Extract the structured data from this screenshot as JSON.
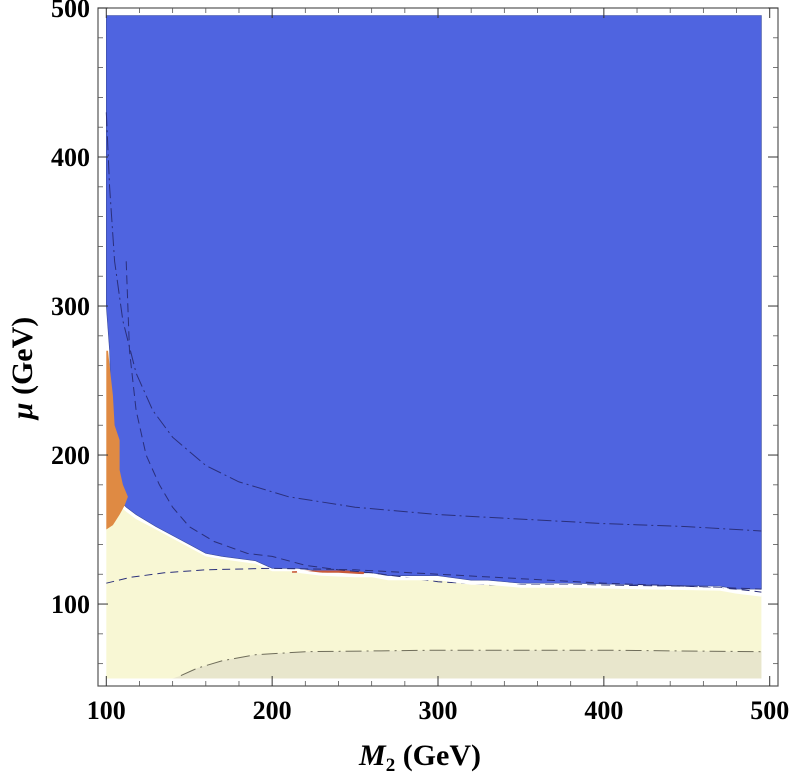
{
  "chart_data": {
    "type": "contour",
    "xlabel": "M2 (GeV)",
    "ylabel": "μ (GeV)",
    "xlabel_parts": {
      "main": "M",
      "sub": "2",
      "unit": " (GeV)"
    },
    "ylabel_parts": {
      "main": "μ",
      "unit": " (GeV)"
    },
    "xlim": [
      95,
      505
    ],
    "ylim": [
      45,
      500
    ],
    "xticks": [
      100,
      200,
      300,
      400,
      500
    ],
    "yticks": [
      100,
      200,
      300,
      400,
      500
    ],
    "xtick_labels": [
      "100",
      "200",
      "300",
      "400",
      "500"
    ],
    "ytick_labels": [
      "100",
      "200",
      "300",
      "400",
      "500"
    ],
    "colors": {
      "blue_region": "#4f64e0",
      "yellow_region": "#f8f7d4",
      "gray_region": "#e8e6cc",
      "orange_region": "#df8a43",
      "red_region": "#c85a3a",
      "contour_line": "#2a2f7a",
      "frame": "#555555"
    },
    "regions": [
      {
        "name": "blue-region",
        "points": [
          [
            100,
            495
          ],
          [
            495,
            495
          ],
          [
            495,
            110
          ],
          [
            480,
            110
          ],
          [
            470,
            112
          ],
          [
            420,
            113
          ],
          [
            380,
            114
          ],
          [
            350,
            114
          ],
          [
            330,
            116
          ],
          [
            320,
            116
          ],
          [
            300,
            119
          ],
          [
            270,
            119
          ],
          [
            260,
            121
          ],
          [
            250,
            121
          ],
          [
            230,
            122
          ],
          [
            215,
            124
          ],
          [
            200,
            124
          ],
          [
            190,
            129
          ],
          [
            170,
            132
          ],
          [
            160,
            134
          ],
          [
            150,
            140
          ],
          [
            140,
            146
          ],
          [
            130,
            152
          ],
          [
            118,
            160
          ],
          [
            112,
            165
          ],
          [
            108,
            170
          ],
          [
            106,
            180
          ],
          [
            104,
            200
          ],
          [
            103,
            230
          ],
          [
            102,
            270
          ],
          [
            100,
            300
          ]
        ]
      },
      {
        "name": "yellow-region",
        "points": [
          [
            100,
            50
          ],
          [
            495,
            50
          ],
          [
            495,
            106
          ],
          [
            480,
            108
          ],
          [
            470,
            110
          ],
          [
            420,
            111
          ],
          [
            380,
            112
          ],
          [
            350,
            112
          ],
          [
            330,
            114
          ],
          [
            320,
            114
          ],
          [
            300,
            117
          ],
          [
            270,
            117
          ],
          [
            260,
            119
          ],
          [
            250,
            119
          ],
          [
            230,
            120
          ],
          [
            215,
            122
          ],
          [
            200,
            122
          ],
          [
            190,
            127
          ],
          [
            170,
            130
          ],
          [
            160,
            132
          ],
          [
            150,
            138
          ],
          [
            140,
            144
          ],
          [
            130,
            150
          ],
          [
            118,
            157
          ],
          [
            112,
            162
          ],
          [
            108,
            166
          ],
          [
            104,
            155
          ],
          [
            100,
            150
          ]
        ]
      },
      {
        "name": "gray-region",
        "points": [
          [
            140,
            50
          ],
          [
            495,
            50
          ],
          [
            495,
            68
          ],
          [
            400,
            69
          ],
          [
            300,
            69
          ],
          [
            220,
            68
          ],
          [
            190,
            66
          ],
          [
            170,
            62
          ],
          [
            155,
            57
          ],
          [
            145,
            52
          ]
        ]
      },
      {
        "name": "orange-region",
        "points": [
          [
            100,
            150
          ],
          [
            104,
            153
          ],
          [
            108,
            160
          ],
          [
            111,
            166
          ],
          [
            113,
            172
          ],
          [
            110,
            180
          ],
          [
            108,
            190
          ],
          [
            108,
            210
          ],
          [
            105,
            220
          ],
          [
            104,
            240
          ],
          [
            102,
            260
          ],
          [
            101,
            270
          ],
          [
            100,
            270
          ]
        ]
      },
      {
        "name": "red-region",
        "points": [
          [
            212,
            121
          ],
          [
            240,
            121
          ],
          [
            255,
            120
          ],
          [
            256,
            121.5
          ],
          [
            245,
            122.5
          ],
          [
            225,
            122.5
          ],
          [
            212,
            122
          ]
        ]
      }
    ],
    "contours": [
      {
        "name": "contour-upper-dashed",
        "dash": "14 4 2 4",
        "points": [
          [
            100,
            430
          ],
          [
            102,
            380
          ],
          [
            105,
            330
          ],
          [
            110,
            290
          ],
          [
            118,
            255
          ],
          [
            128,
            230
          ],
          [
            140,
            212
          ],
          [
            160,
            193
          ],
          [
            180,
            182
          ],
          [
            210,
            172
          ],
          [
            250,
            165
          ],
          [
            300,
            160
          ],
          [
            350,
            157
          ],
          [
            400,
            154
          ],
          [
            450,
            152
          ],
          [
            495,
            149
          ]
        ]
      },
      {
        "name": "contour-middle-dashed",
        "dash": "9 5",
        "points": [
          [
            112,
            330
          ],
          [
            114,
            270
          ],
          [
            118,
            230
          ],
          [
            124,
            200
          ],
          [
            132,
            180
          ],
          [
            140,
            165
          ],
          [
            150,
            152
          ],
          [
            165,
            142
          ],
          [
            185,
            134
          ],
          [
            200,
            132
          ],
          [
            220,
            126
          ],
          [
            240,
            123
          ],
          [
            260,
            121
          ],
          [
            300,
            115
          ],
          [
            330,
            113
          ],
          [
            380,
            113
          ],
          [
            450,
            112
          ],
          [
            495,
            110
          ]
        ]
      },
      {
        "name": "contour-lower-dashed",
        "dash": "8 5",
        "points": [
          [
            100,
            114
          ],
          [
            115,
            118
          ],
          [
            135,
            121
          ],
          [
            160,
            123
          ],
          [
            200,
            124
          ],
          [
            250,
            123
          ],
          [
            300,
            120
          ],
          [
            350,
            117
          ],
          [
            400,
            114
          ],
          [
            450,
            112
          ],
          [
            480,
            110
          ],
          [
            495,
            108
          ]
        ]
      },
      {
        "name": "contour-gray-boundary",
        "dash": "16 5 2 5",
        "points": [
          [
            145,
            52
          ],
          [
            155,
            57
          ],
          [
            170,
            62
          ],
          [
            190,
            66
          ],
          [
            220,
            68
          ],
          [
            300,
            69
          ],
          [
            400,
            69
          ],
          [
            495,
            68
          ]
        ]
      }
    ]
  }
}
